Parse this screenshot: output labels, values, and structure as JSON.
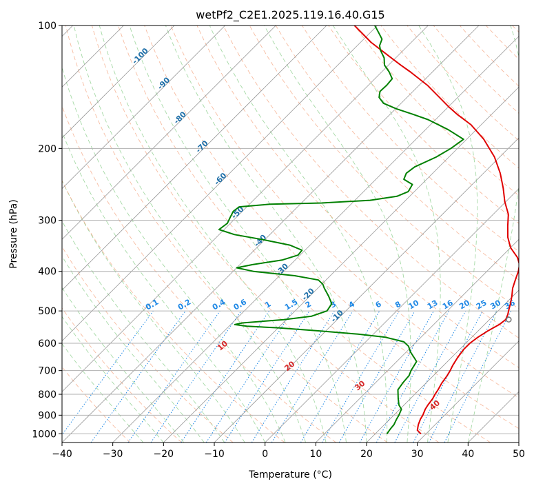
{
  "chart_data": {
    "type": "line",
    "subtype": "skew-T log-P diagram",
    "title": "wetPf2_C2E1.2025.119.16.40.G15",
    "xlabel": "Temperature (°C)",
    "ylabel": "Pressure (hPa)",
    "xlim": [
      -40,
      50
    ],
    "ylim": [
      1050,
      100
    ],
    "y_scale": "log",
    "x_ticks": [
      -40,
      -30,
      -20,
      -10,
      0,
      10,
      20,
      30,
      40,
      50
    ],
    "y_ticks": [
      100,
      200,
      300,
      400,
      500,
      600,
      700,
      800,
      900,
      1000
    ],
    "grid": true,
    "colors": {
      "temperature": "#e00000",
      "dewpoint": "#008000",
      "isotherm": "#999999",
      "dry_adiabat": "#f4a582",
      "moist_adiabat": "#7fc97f",
      "mixing_ratio": "#1e88e5",
      "isotherm_label": "#1f6fa8",
      "dry_adiabat_label": "#d62728",
      "lcl_marker": "#777777"
    },
    "series": [
      {
        "points": [
          {
            "p": 1000,
            "t": 29.0
          },
          {
            "p": 980,
            "t": 27.6
          },
          {
            "p": 950,
            "t": 26.7
          },
          {
            "p": 920,
            "t": 26.0
          },
          {
            "p": 900,
            "t": 25.7
          },
          {
            "p": 870,
            "t": 25.0
          },
          {
            "p": 850,
            "t": 24.7
          },
          {
            "p": 820,
            "t": 24.4
          },
          {
            "p": 800,
            "t": 24.0
          },
          {
            "p": 780,
            "t": 23.7
          },
          {
            "p": 750,
            "t": 23.1
          },
          {
            "p": 720,
            "t": 22.7
          },
          {
            "p": 700,
            "t": 22.3
          },
          {
            "p": 680,
            "t": 21.8
          },
          {
            "p": 650,
            "t": 21.2
          },
          {
            "p": 620,
            "t": 20.8
          },
          {
            "p": 600,
            "t": 20.8
          },
          {
            "p": 580,
            "t": 21.2
          },
          {
            "p": 560,
            "t": 21.9
          },
          {
            "p": 540,
            "t": 22.9
          },
          {
            "p": 525,
            "t": 23.2
          },
          {
            "p": 510,
            "t": 22.6
          },
          {
            "p": 495,
            "t": 21.8
          },
          {
            "p": 480,
            "t": 21.0
          },
          {
            "p": 460,
            "t": 19.8
          },
          {
            "p": 440,
            "t": 18.4
          },
          {
            "p": 420,
            "t": 17.3
          },
          {
            "p": 400,
            "t": 16.2
          },
          {
            "p": 385,
            "t": 15.1
          },
          {
            "p": 370,
            "t": 13.3
          },
          {
            "p": 350,
            "t": 10.0
          },
          {
            "p": 330,
            "t": 7.4
          },
          {
            "p": 310,
            "t": 5.2
          },
          {
            "p": 290,
            "t": 3.0
          },
          {
            "p": 270,
            "t": -0.2
          },
          {
            "p": 250,
            "t": -3.2
          },
          {
            "p": 230,
            "t": -6.7
          },
          {
            "p": 210,
            "t": -11.0
          },
          {
            "p": 190,
            "t": -16.6
          },
          {
            "p": 175,
            "t": -22.0
          },
          {
            "p": 165,
            "t": -26.8
          },
          {
            "p": 158,
            "t": -30.0
          },
          {
            "p": 150,
            "t": -33.6
          },
          {
            "p": 140,
            "t": -38.4
          },
          {
            "p": 130,
            "t": -44.3
          },
          {
            "p": 125,
            "t": -47.6
          },
          {
            "p": 120,
            "t": -50.9
          },
          {
            "p": 110,
            "t": -57.9
          },
          {
            "p": 100,
            "t": -64.5
          }
        ]
      },
      {
        "points": [
          {
            "p": 1000,
            "t": 22.3
          },
          {
            "p": 970,
            "t": 22.0
          },
          {
            "p": 950,
            "t": 21.9
          },
          {
            "p": 920,
            "t": 21.3
          },
          {
            "p": 900,
            "t": 21.0
          },
          {
            "p": 870,
            "t": 20.3
          },
          {
            "p": 850,
            "t": 19.0
          },
          {
            "p": 820,
            "t": 17.6
          },
          {
            "p": 800,
            "t": 16.7
          },
          {
            "p": 780,
            "t": 15.8
          },
          {
            "p": 750,
            "t": 15.4
          },
          {
            "p": 720,
            "t": 15.2
          },
          {
            "p": 700,
            "t": 14.6
          },
          {
            "p": 680,
            "t": 14.2
          },
          {
            "p": 665,
            "t": 13.9
          },
          {
            "p": 650,
            "t": 12.6
          },
          {
            "p": 630,
            "t": 10.8
          },
          {
            "p": 610,
            "t": 9.3
          },
          {
            "p": 595,
            "t": 7.5
          },
          {
            "p": 580,
            "t": 3.0
          },
          {
            "p": 570,
            "t": -3.0
          },
          {
            "p": 560,
            "t": -11.0
          },
          {
            "p": 550,
            "t": -20.0
          },
          {
            "p": 545,
            "t": -26.5
          },
          {
            "p": 540,
            "t": -29.2
          },
          {
            "p": 535,
            "t": -28.0
          },
          {
            "p": 525,
            "t": -20.5
          },
          {
            "p": 515,
            "t": -15.7
          },
          {
            "p": 500,
            "t": -13.7
          },
          {
            "p": 480,
            "t": -14.2
          },
          {
            "p": 460,
            "t": -16.3
          },
          {
            "p": 440,
            "t": -18.7
          },
          {
            "p": 430,
            "t": -19.8
          },
          {
            "p": 420,
            "t": -21.5
          },
          {
            "p": 410,
            "t": -27.0
          },
          {
            "p": 400,
            "t": -36.0
          },
          {
            "p": 392,
            "t": -40.0
          },
          {
            "p": 385,
            "t": -37.5
          },
          {
            "p": 375,
            "t": -32.5
          },
          {
            "p": 365,
            "t": -30.4
          },
          {
            "p": 355,
            "t": -30.6
          },
          {
            "p": 345,
            "t": -34.0
          },
          {
            "p": 335,
            "t": -40.0
          },
          {
            "p": 325,
            "t": -47.0
          },
          {
            "p": 316,
            "t": -51.0
          },
          {
            "p": 305,
            "t": -50.6
          },
          {
            "p": 295,
            "t": -51.2
          },
          {
            "p": 285,
            "t": -51.8
          },
          {
            "p": 278,
            "t": -51.5
          },
          {
            "p": 274,
            "t": -46.0
          },
          {
            "p": 272,
            "t": -36.0
          },
          {
            "p": 268,
            "t": -27.0
          },
          {
            "p": 262,
            "t": -22.5
          },
          {
            "p": 255,
            "t": -21.2
          },
          {
            "p": 245,
            "t": -21.8
          },
          {
            "p": 238,
            "t": -24.5
          },
          {
            "p": 230,
            "t": -25.2
          },
          {
            "p": 222,
            "t": -24.8
          },
          {
            "p": 210,
            "t": -22.5
          },
          {
            "p": 200,
            "t": -21.3
          },
          {
            "p": 190,
            "t": -20.6
          },
          {
            "p": 180,
            "t": -25.5
          },
          {
            "p": 170,
            "t": -31.5
          },
          {
            "p": 165,
            "t": -35.5
          },
          {
            "p": 160,
            "t": -39.8
          },
          {
            "p": 155,
            "t": -43.5
          },
          {
            "p": 150,
            "t": -45.5
          },
          {
            "p": 145,
            "t": -46.5
          },
          {
            "p": 140,
            "t": -46.4
          },
          {
            "p": 135,
            "t": -46.6
          },
          {
            "p": 130,
            "t": -48.5
          },
          {
            "p": 125,
            "t": -50.8
          },
          {
            "p": 120,
            "t": -52.3
          },
          {
            "p": 115,
            "t": -54.5
          },
          {
            "p": 112,
            "t": -55.6
          },
          {
            "p": 108,
            "t": -56.4
          },
          {
            "p": 104,
            "t": -58.4
          },
          {
            "p": 100,
            "t": -60.5
          }
        ]
      }
    ],
    "lcl_marker": {
      "p": 525,
      "t": 23.8
    },
    "isotherm_labels": [
      -100,
      -90,
      -80,
      -70,
      -60,
      -50,
      -40,
      -30,
      -20,
      -10
    ],
    "dry_adiabat_labels": [
      10,
      20,
      30,
      40
    ],
    "mixing_ratio_labels": [
      "0.1",
      "0.2",
      "0.4",
      "0.6",
      "1",
      "1.5",
      "2",
      "3",
      "4",
      "6",
      "8",
      "10",
      "13",
      "16",
      "20",
      "25",
      "30",
      "36"
    ]
  }
}
